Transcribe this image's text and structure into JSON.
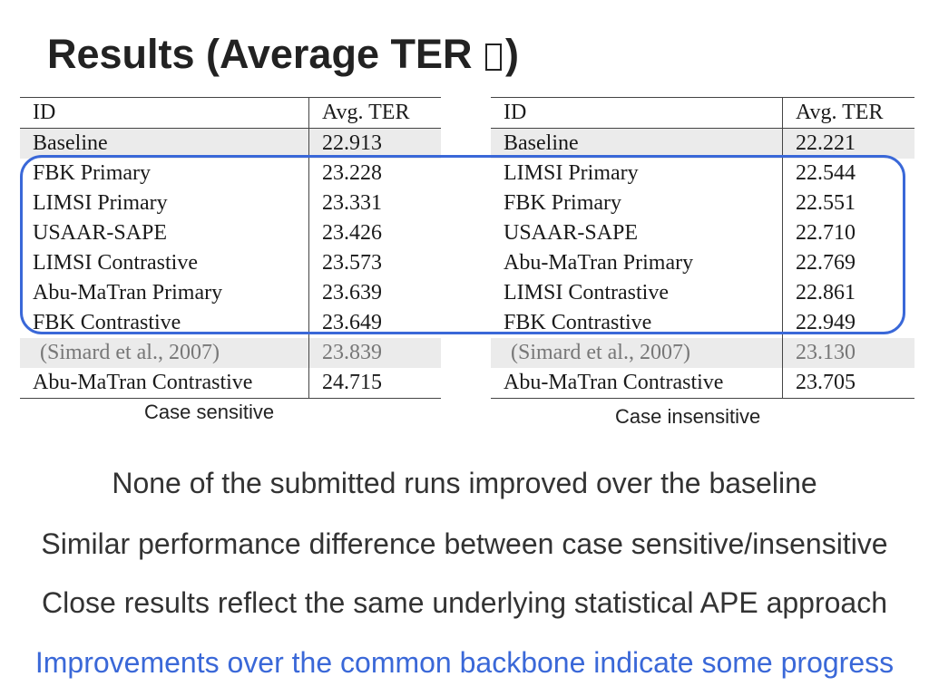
{
  "title": {
    "text_before": "Results (Average TER ",
    "text_after": ")"
  },
  "tables": {
    "left": {
      "header": {
        "id": "ID",
        "value": "Avg. TER"
      },
      "rows": [
        {
          "id": "Baseline",
          "value": "22.913"
        },
        {
          "id": "FBK Primary",
          "value": "23.228"
        },
        {
          "id": "LIMSI Primary",
          "value": "23.331"
        },
        {
          "id": "USAAR-SAPE",
          "value": "23.426"
        },
        {
          "id": "LIMSI Contrastive",
          "value": "23.573"
        },
        {
          "id": "Abu-MaTran Primary",
          "value": "23.639"
        },
        {
          "id": "FBK Contrastive",
          "value": "23.649"
        },
        {
          "id": "(Simard et al., 2007)",
          "value": "23.839"
        },
        {
          "id": "Abu-MaTran Contrastive",
          "value": "24.715"
        }
      ],
      "caption": "Case sensitive"
    },
    "right": {
      "header": {
        "id": "ID",
        "value": "Avg. TER"
      },
      "rows": [
        {
          "id": "Baseline",
          "value": "22.221"
        },
        {
          "id": "LIMSI Primary",
          "value": "22.544"
        },
        {
          "id": "FBK Primary",
          "value": "22.551"
        },
        {
          "id": "USAAR-SAPE",
          "value": "22.710"
        },
        {
          "id": "Abu-MaTran Primary",
          "value": "22.769"
        },
        {
          "id": "LIMSI Contrastive",
          "value": "22.861"
        },
        {
          "id": "FBK Contrastive",
          "value": "22.949"
        },
        {
          "id": "(Simard et al., 2007)",
          "value": "23.130"
        },
        {
          "id": "Abu-MaTran Contrastive",
          "value": "23.705"
        }
      ],
      "caption": "Case insensitive"
    }
  },
  "bullets": [
    "None of the submitted runs improved over the baseline",
    "Similar performance difference between case sensitive/insensitive",
    "Close results reflect the same underlying statistical APE approach",
    "Improvements over the common backbone indicate some progress"
  ],
  "colors": {
    "accent": "#3a68d8",
    "shaded_row": "#ebebeb",
    "reference_text": "#777777"
  }
}
